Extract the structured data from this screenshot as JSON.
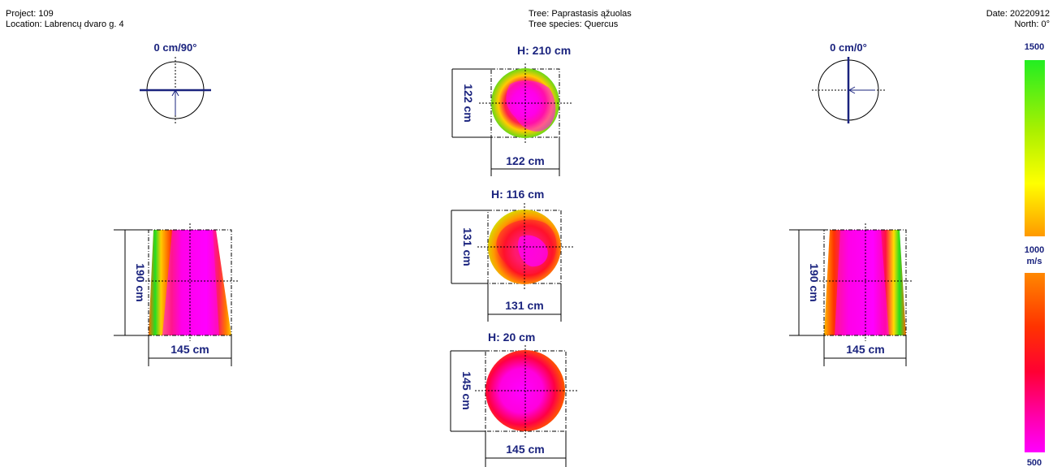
{
  "header": {
    "project_label": "Project:",
    "project": "109",
    "location_label": "Location:",
    "location": "Labrencų dvaro g. 4",
    "tree_label": "Tree:",
    "tree": "Paprastasis ąžuolas",
    "species_label": "Tree species:",
    "species": "Quercus",
    "date_label": "Date:",
    "date": "20220912",
    "north_label": "North:",
    "north": "0°"
  },
  "orientation": {
    "left": {
      "label": "0 cm/90°"
    },
    "right": {
      "label": "0 cm/0°"
    }
  },
  "sections": [
    {
      "height_label": "H: 210 cm",
      "diameter_label": "122 cm",
      "depth_label": "122 cm"
    },
    {
      "height_label": "H: 116 cm",
      "diameter_label": "131 cm",
      "depth_label": "131 cm"
    },
    {
      "height_label": "H: 20 cm",
      "diameter_label": "145 cm",
      "depth_label": "145 cm"
    }
  ],
  "side_views": {
    "left": {
      "height_label": "190 cm",
      "width_label": "145 cm"
    },
    "right": {
      "height_label": "190 cm",
      "width_label": "145 cm"
    }
  },
  "legend": {
    "top": "1500",
    "middle": "1000",
    "unit": "m/s",
    "bottom": "500",
    "colors": [
      "#22ee22",
      "#aaf000",
      "#ffff00",
      "#ff9900",
      "#ff5500",
      "#ff0033",
      "#ff00ff"
    ]
  }
}
